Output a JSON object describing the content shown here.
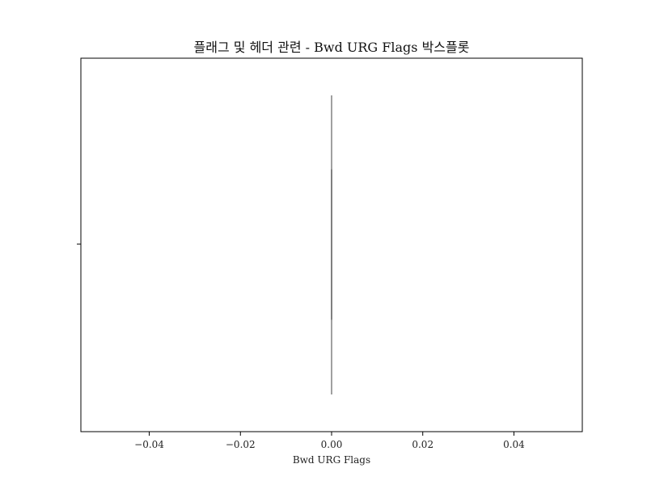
{
  "chart_data": {
    "type": "boxplot",
    "title": "플래그 및 헤더 관련 - Bwd URG Flags 박스플롯",
    "xlabel": "Bwd URG Flags",
    "ylabel": "",
    "orientation": "horizontal",
    "xlim": [
      -0.055,
      0.055
    ],
    "xticks": [
      -0.04,
      -0.02,
      0.0,
      0.02,
      0.04
    ],
    "xtick_labels": [
      "−0.04",
      "−0.02",
      "0.00",
      "0.02",
      "0.04"
    ],
    "series": [
      {
        "min": 0,
        "q1": 0,
        "median": 0,
        "q3": 0,
        "max": 0
      }
    ],
    "grid": false,
    "colors": {
      "box": "#808080",
      "axis": "#000000"
    }
  }
}
